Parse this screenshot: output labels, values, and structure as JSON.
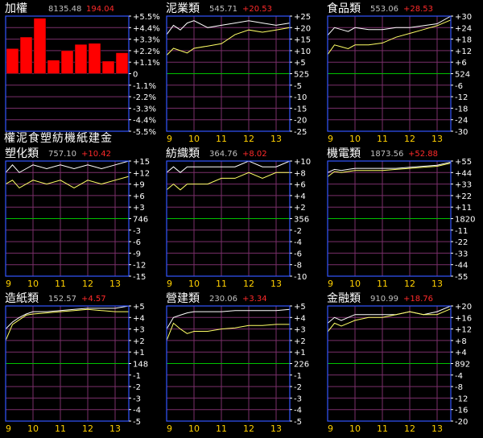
{
  "colors": {
    "background": "#000000",
    "frame": "#3355ff",
    "grid": "#7a2f6a",
    "baseline": "#00c000",
    "title": "#ffffff",
    "price": "#c0c0c0",
    "change": "#ff2a2a",
    "axis_label": "#ffffff",
    "x_tick": "#ffd000",
    "index_line": "#ffffff",
    "sector_line": "#ffff66",
    "bar": "#ff0000"
  },
  "chart_data": [
    {
      "type": "bar",
      "title": "加權",
      "price": "8135.48",
      "change": "194.04",
      "categories": [
        "權",
        "泥",
        "食",
        "塑",
        "紡",
        "機",
        "紙",
        "建",
        "金"
      ],
      "category_label": "權泥食塑紡機紙建金",
      "values": [
        2.4,
        3.5,
        5.3,
        1.3,
        2.2,
        2.8,
        2.9,
        1.2,
        2.0
      ],
      "y_ticks": [
        "+5.5%",
        "+4.4%",
        "+3.3%",
        "+2.2%",
        "+1.1%",
        "0",
        "-1.1%",
        "-2.2%",
        "-3.3%",
        "-4.4%",
        "-5.5%"
      ],
      "ylim": [
        -5.5,
        5.5
      ]
    },
    {
      "type": "line",
      "title": "泥業類",
      "price": "545.71",
      "change": "+20.53",
      "y_ticks": [
        "+25",
        "+20",
        "+15",
        "+10",
        "+5",
        "525",
        "-5",
        "-10",
        "-15",
        "-20",
        "-25"
      ],
      "ylim": [
        -25,
        25
      ],
      "x_ticks": [
        "9",
        "10",
        "11",
        "12",
        "13"
      ],
      "xlim": [
        9,
        13.5
      ],
      "series": [
        {
          "x": [
            9.0,
            9.25,
            9.5,
            9.75,
            10.0,
            10.5,
            11.0,
            11.5,
            12.0,
            12.5,
            13.0,
            13.5
          ],
          "values": [
            17,
            21,
            19,
            22,
            23,
            20,
            21,
            22,
            23,
            22,
            21,
            22
          ]
        },
        {
          "x": [
            9.0,
            9.25,
            9.5,
            9.75,
            10.0,
            10.5,
            11.0,
            11.5,
            12.0,
            12.5,
            13.0,
            13.5
          ],
          "values": [
            8,
            11,
            10,
            9,
            11,
            12,
            13,
            17,
            19,
            18,
            19,
            20
          ]
        }
      ]
    },
    {
      "type": "line",
      "title": "食品類",
      "price": "553.06",
      "change": "+28.53",
      "y_ticks": [
        "+30",
        "+24",
        "+18",
        "+12",
        "+6",
        "524",
        "-6",
        "-12",
        "-18",
        "-24",
        "-30"
      ],
      "ylim": [
        -30,
        30
      ],
      "x_ticks": [
        "9",
        "10",
        "11",
        "12",
        "13"
      ],
      "xlim": [
        9,
        13.5
      ],
      "series": [
        {
          "x": [
            9.0,
            9.25,
            9.5,
            9.75,
            10.0,
            10.5,
            11.0,
            11.5,
            12.0,
            12.5,
            13.0,
            13.5
          ],
          "values": [
            20,
            24,
            23,
            22,
            24,
            23,
            23,
            24,
            24,
            25,
            26,
            30
          ]
        },
        {
          "x": [
            9.0,
            9.25,
            9.5,
            9.75,
            10.0,
            10.5,
            11.0,
            11.5,
            12.0,
            12.5,
            13.0,
            13.5
          ],
          "values": [
            10,
            15,
            14,
            13,
            15,
            15,
            16,
            19,
            21,
            23,
            25,
            28
          ]
        }
      ]
    },
    {
      "type": "line",
      "title": "塑化類",
      "price": "757.10",
      "change": "+10.42",
      "y_ticks": [
        "+15",
        "+12",
        "+9",
        "+6",
        "+3",
        "746",
        "-3",
        "-6",
        "-9",
        "-12",
        "-15"
      ],
      "ylim": [
        -15,
        15
      ],
      "x_ticks": [
        "9",
        "10",
        "11",
        "12",
        "13"
      ],
      "xlim": [
        9,
        13.5
      ],
      "series": [
        {
          "x": [
            9.0,
            9.25,
            9.5,
            9.75,
            10.0,
            10.5,
            11.0,
            11.5,
            12.0,
            12.5,
            13.0,
            13.5
          ],
          "values": [
            12,
            14,
            12,
            13,
            14,
            13,
            14,
            13,
            14,
            13,
            14,
            15
          ]
        },
        {
          "x": [
            9.0,
            9.25,
            9.5,
            9.75,
            10.0,
            10.5,
            11.0,
            11.5,
            12.0,
            12.5,
            13.0,
            13.5
          ],
          "values": [
            9,
            10,
            8,
            9,
            10,
            9,
            10,
            8,
            10,
            9,
            10,
            11
          ]
        }
      ]
    },
    {
      "type": "line",
      "title": "紡織類",
      "price": "364.76",
      "change": "+8.02",
      "y_ticks": [
        "+10",
        "+8",
        "+6",
        "+4",
        "+2",
        "356",
        "-2",
        "-4",
        "-6",
        "-8",
        "-10"
      ],
      "ylim": [
        -10,
        10
      ],
      "x_ticks": [
        "9",
        "10",
        "11",
        "12",
        "13"
      ],
      "xlim": [
        9,
        13.5
      ],
      "series": [
        {
          "x": [
            9.0,
            9.25,
            9.5,
            9.75,
            10.0,
            10.5,
            11.0,
            11.5,
            12.0,
            12.5,
            13.0,
            13.5
          ],
          "values": [
            8,
            9,
            8,
            9,
            9,
            9,
            9,
            9,
            10,
            9,
            9,
            10
          ]
        },
        {
          "x": [
            9.0,
            9.25,
            9.5,
            9.75,
            10.0,
            10.5,
            11.0,
            11.5,
            12.0,
            12.5,
            13.0,
            13.5
          ],
          "values": [
            5,
            6,
            5,
            6,
            6,
            6,
            7,
            7,
            8,
            7,
            8,
            8
          ]
        }
      ]
    },
    {
      "type": "line",
      "title": "機電類",
      "price": "1873.56",
      "change": "+52.88",
      "y_ticks": [
        "+55",
        "+44",
        "+33",
        "+22",
        "+11",
        "1820",
        "-11",
        "-22",
        "-33",
        "-44",
        "-55"
      ],
      "ylim": [
        -55,
        55
      ],
      "x_ticks": [
        "9",
        "10",
        "11",
        "12",
        "13"
      ],
      "xlim": [
        9,
        13.5
      ],
      "series": [
        {
          "x": [
            9.0,
            9.25,
            9.5,
            9.75,
            10.0,
            10.5,
            11.0,
            11.5,
            12.0,
            12.5,
            13.0,
            13.5
          ],
          "values": [
            44,
            47,
            46,
            47,
            48,
            48,
            48,
            48,
            49,
            50,
            51,
            54
          ]
        },
        {
          "x": [
            9.0,
            9.25,
            9.5,
            9.75,
            10.0,
            10.5,
            11.0,
            11.5,
            12.0,
            12.5,
            13.0,
            13.5
          ],
          "values": [
            40,
            45,
            44,
            45,
            46,
            46,
            46,
            47,
            48,
            49,
            50,
            53
          ]
        }
      ]
    },
    {
      "type": "line",
      "title": "造紙類",
      "price": "152.57",
      "change": "+4.57",
      "y_ticks": [
        "+5",
        "+4",
        "+3",
        "+2",
        "+1",
        "148",
        "-1",
        "-2",
        "-3",
        "-4",
        "-5"
      ],
      "ylim": [
        -5,
        5
      ],
      "x_ticks": [
        "9",
        "10",
        "11",
        "12",
        "13"
      ],
      "xlim": [
        9,
        13.5
      ],
      "series": [
        {
          "x": [
            9.0,
            9.25,
            9.5,
            9.75,
            10.0,
            10.5,
            11.0,
            11.5,
            12.0,
            12.5,
            13.0,
            13.5
          ],
          "values": [
            3.0,
            3.6,
            4.0,
            4.3,
            4.5,
            4.5,
            4.6,
            4.7,
            4.8,
            4.8,
            4.8,
            5.0
          ]
        },
        {
          "x": [
            9.0,
            9.25,
            9.5,
            9.75,
            10.0,
            10.5,
            11.0,
            11.5,
            12.0,
            12.5,
            13.0,
            13.5
          ],
          "values": [
            2.0,
            3.4,
            3.8,
            4.2,
            4.3,
            4.4,
            4.5,
            4.6,
            4.7,
            4.6,
            4.5,
            4.5
          ]
        }
      ]
    },
    {
      "type": "line",
      "title": "營建類",
      "price": "230.06",
      "change": "+3.34",
      "y_ticks": [
        "+5",
        "+4",
        "+3",
        "+2",
        "+1",
        "226",
        "-1",
        "-2",
        "-3",
        "-4",
        "-5"
      ],
      "ylim": [
        -5,
        5
      ],
      "x_ticks": [
        "9",
        "10",
        "11",
        "12",
        "13"
      ],
      "xlim": [
        9,
        13.5
      ],
      "series": [
        {
          "x": [
            9.0,
            9.25,
            9.5,
            9.75,
            10.0,
            10.5,
            11.0,
            11.5,
            12.0,
            12.5,
            13.0,
            13.5
          ],
          "values": [
            3.0,
            4.0,
            4.2,
            4.4,
            4.5,
            4.5,
            4.5,
            4.6,
            4.6,
            4.6,
            4.6,
            4.7
          ]
        },
        {
          "x": [
            9.0,
            9.25,
            9.5,
            9.75,
            10.0,
            10.5,
            11.0,
            11.5,
            12.0,
            12.5,
            13.0,
            13.5
          ],
          "values": [
            2.0,
            3.5,
            3.0,
            2.6,
            2.8,
            2.8,
            3.0,
            3.1,
            3.3,
            3.3,
            3.4,
            3.4
          ]
        }
      ]
    },
    {
      "type": "line",
      "title": "金融類",
      "price": "910.99",
      "change": "+18.76",
      "y_ticks": [
        "+20",
        "+16",
        "+12",
        "+8",
        "+4",
        "892",
        "-4",
        "-8",
        "-12",
        "-16",
        "-20"
      ],
      "ylim": [
        -20,
        20
      ],
      "x_ticks": [
        "9",
        "10",
        "11",
        "12",
        "13"
      ],
      "xlim": [
        9,
        13.5
      ],
      "series": [
        {
          "x": [
            9.0,
            9.25,
            9.5,
            9.75,
            10.0,
            10.5,
            11.0,
            11.5,
            12.0,
            12.5,
            13.0,
            13.5
          ],
          "values": [
            14,
            16,
            15,
            16,
            17,
            17,
            17,
            17,
            18,
            17,
            18,
            20
          ]
        },
        {
          "x": [
            9.0,
            9.25,
            9.5,
            9.75,
            10.0,
            10.5,
            11.0,
            11.5,
            12.0,
            12.5,
            13.0,
            13.5
          ],
          "values": [
            11,
            14,
            13,
            14,
            15,
            16,
            16,
            17,
            18,
            17,
            17,
            19
          ]
        }
      ]
    }
  ]
}
